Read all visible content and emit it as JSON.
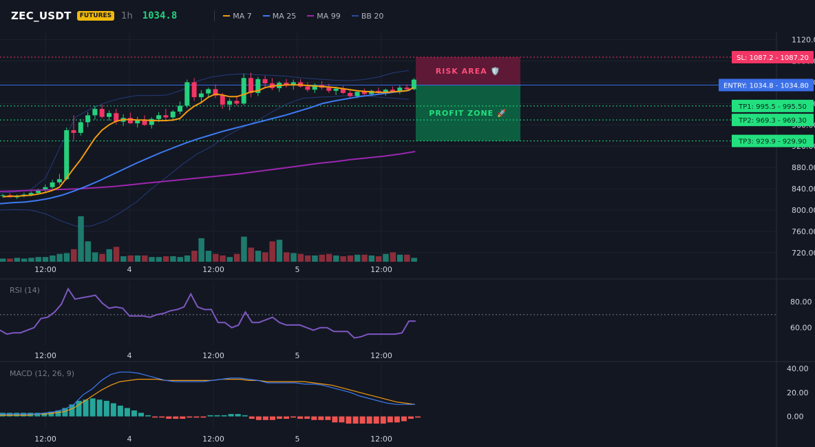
{
  "header": {
    "symbol": "ZEC_USDT",
    "badge": "FUTURES",
    "timeframe": "1h",
    "price": "1034.8",
    "legend": [
      {
        "label": "MA 7",
        "color": "#f39c12"
      },
      {
        "label": "MA 25",
        "color": "#3d7bf2"
      },
      {
        "label": "MA 99",
        "color": "#9c27b0"
      },
      {
        "label": "BB 20",
        "color": "#2a4b9b"
      }
    ]
  },
  "chart_data": {
    "type": "candlestick",
    "price_axis": {
      "ticks": [
        "1120.00",
        "1080.00",
        "1040.00",
        "1000.00",
        "960.00",
        "920.00",
        "880.00",
        "840.00",
        "800.00",
        "760.00",
        "720.00"
      ],
      "ylim": [
        703,
        1135
      ]
    },
    "time_axis": {
      "ticks": [
        "12:00",
        "4",
        "12:00",
        "5",
        "12:00"
      ]
    },
    "candles": [
      [
        827,
        830,
        824,
        828
      ],
      [
        828,
        832,
        825,
        824
      ],
      [
        824,
        829,
        821,
        827
      ],
      [
        827,
        833,
        824,
        829
      ],
      [
        829,
        835,
        826,
        832
      ],
      [
        832,
        840,
        829,
        837
      ],
      [
        837,
        848,
        834,
        843
      ],
      [
        843,
        857,
        840,
        852
      ],
      [
        852,
        868,
        848,
        858
      ],
      [
        858,
        955,
        856,
        950
      ],
      [
        950,
        978,
        931,
        945
      ],
      [
        945,
        971,
        940,
        965
      ],
      [
        965,
        984,
        956,
        978
      ],
      [
        978,
        996,
        970,
        990
      ],
      [
        990,
        998,
        972,
        975
      ],
      [
        975,
        987,
        968,
        982
      ],
      [
        982,
        990,
        961,
        966
      ],
      [
        966,
        980,
        958,
        973
      ],
      [
        973,
        983,
        962,
        963
      ],
      [
        963,
        975,
        955,
        970
      ],
      [
        970,
        978,
        958,
        960
      ],
      [
        960,
        974,
        953,
        971
      ],
      [
        971,
        984,
        965,
        978
      ],
      [
        978,
        990,
        970,
        974
      ],
      [
        974,
        988,
        967,
        985
      ],
      [
        985,
        1004,
        980,
        996
      ],
      [
        996,
        1045,
        992,
        1040
      ],
      [
        1040,
        1048,
        1005,
        1012
      ],
      [
        1012,
        1025,
        1000,
        1019
      ],
      [
        1019,
        1030,
        1011,
        1027
      ],
      [
        1027,
        1036,
        1010,
        1015
      ],
      [
        1015,
        1020,
        990,
        998
      ],
      [
        998,
        1010,
        987,
        1005
      ],
      [
        1005,
        1015,
        996,
        1000
      ],
      [
        1000,
        1056,
        997,
        1048
      ],
      [
        1048,
        1058,
        1012,
        1020
      ],
      [
        1020,
        1050,
        1014,
        1046
      ],
      [
        1046,
        1052,
        1030,
        1038
      ],
      [
        1038,
        1048,
        1025,
        1029
      ],
      [
        1029,
        1042,
        1022,
        1039
      ],
      [
        1039,
        1046,
        1030,
        1034
      ],
      [
        1034,
        1045,
        1026,
        1040
      ],
      [
        1040,
        1046,
        1030,
        1032
      ],
      [
        1032,
        1040,
        1022,
        1026
      ],
      [
        1026,
        1038,
        1020,
        1035
      ],
      [
        1035,
        1042,
        1026,
        1030
      ],
      [
        1030,
        1037,
        1020,
        1024
      ],
      [
        1024,
        1032,
        1016,
        1028
      ],
      [
        1028,
        1033,
        1018,
        1020
      ],
      [
        1020,
        1026,
        1010,
        1014
      ],
      [
        1014,
        1024,
        1010,
        1022
      ],
      [
        1022,
        1028,
        1015,
        1018
      ],
      [
        1018,
        1026,
        1014,
        1024
      ],
      [
        1024,
        1030,
        1018,
        1020
      ],
      [
        1020,
        1028,
        1015,
        1026
      ],
      [
        1026,
        1032,
        1020,
        1022
      ],
      [
        1022,
        1034,
        1018,
        1030
      ],
      [
        1030,
        1036,
        1024,
        1027
      ],
      [
        1027,
        1048,
        1025,
        1045
      ]
    ],
    "ma7": [
      825,
      826,
      826,
      827,
      828,
      830,
      833,
      837,
      843,
      860,
      878,
      895,
      915,
      935,
      950,
      960,
      967,
      970,
      970,
      969,
      969,
      968,
      968,
      968,
      969,
      972,
      985,
      995,
      1002,
      1012,
      1018,
      1016,
      1013,
      1013,
      1017,
      1022,
      1024,
      1030,
      1033,
      1034,
      1035,
      1035,
      1035,
      1034,
      1033,
      1032,
      1031,
      1030,
      1028,
      1026,
      1024,
      1023,
      1022,
      1021,
      1021,
      1022,
      1023,
      1024,
      1030
    ],
    "ma25": [
      812,
      814,
      815,
      818,
      822,
      828,
      836,
      845,
      855,
      866,
      877,
      888,
      898,
      908,
      917,
      926,
      934,
      941,
      948,
      954,
      960,
      966,
      972,
      978,
      985,
      992,
      1000,
      1005,
      1009,
      1013,
      1016,
      1019,
      1022,
      1025
    ],
    "ma25_x": [
      0,
      18,
      36,
      54,
      72,
      90,
      108,
      126,
      144,
      162,
      180,
      198,
      216,
      234,
      252,
      270,
      288,
      306,
      324,
      342,
      360,
      378,
      396,
      414,
      432,
      450,
      468,
      486,
      504,
      522,
      540,
      558,
      576,
      596
    ],
    "ma99": [
      835,
      836,
      837,
      838,
      839,
      840,
      842,
      844,
      847,
      850,
      853,
      856,
      859,
      862,
      865,
      868,
      872,
      876,
      880,
      884,
      888,
      891,
      895,
      898,
      901,
      905,
      910
    ],
    "bb_upper": [
      832,
      834,
      838,
      860,
      920,
      975,
      990,
      1002,
      1010,
      1015,
      1015,
      1016,
      1025,
      1042,
      1050,
      1054,
      1056,
      1054,
      1053,
      1051,
      1048,
      1046,
      1044,
      1043,
      1045,
      1050,
      1058,
      1062
    ],
    "bb_lower": [
      800,
      801,
      800,
      793,
      780,
      770,
      770,
      780,
      796,
      815,
      840,
      862,
      885,
      905,
      920,
      940,
      955,
      968,
      985,
      1000,
      1010,
      1012,
      1013,
      1015,
      1015,
      1012,
      1010,
      1008
    ],
    "volume": [
      4,
      4,
      5,
      4,
      5,
      6,
      6,
      8,
      10,
      11,
      16,
      58,
      26,
      12,
      10,
      16,
      19,
      7,
      8,
      8,
      8,
      6,
      6,
      7,
      7,
      6,
      8,
      14,
      30,
      14,
      10,
      8,
      6,
      10,
      32,
      18,
      14,
      12,
      26,
      28,
      12,
      11,
      10,
      8,
      8,
      9,
      10,
      8,
      7,
      8,
      9,
      9,
      8,
      7,
      10,
      12,
      9,
      9,
      5
    ],
    "levels": {
      "sl": {
        "value": 1087.2,
        "label": "SL: 1087.2 - 1087.20",
        "color": "#f23665"
      },
      "entry": {
        "value": 1034.8,
        "label": "ENTRY: 1034.8 - 1034.80",
        "color": "#3b6fe8"
      },
      "tp1": {
        "value": 995.5,
        "label": "TP1: 995.5 - 995.50",
        "color": "#23e07f"
      },
      "tp2": {
        "value": 969.3,
        "label": "TP2: 969.3 - 969.30",
        "color": "#23e07f"
      },
      "tp3": {
        "value": 929.9,
        "label": "TP3: 929.9 - 929.90",
        "color": "#23e07f"
      }
    },
    "zones": {
      "risk": "RISK AREA 🛡️",
      "profit": "PROFIT ZONE 🚀"
    },
    "rsi": {
      "title": "RSI (14)",
      "ticks": [
        "80.00",
        "60.00"
      ],
      "ylim": [
        46,
        96
      ],
      "overbought": 70,
      "values": [
        58,
        55,
        56,
        56,
        58,
        60,
        67,
        68,
        72,
        78,
        90,
        82,
        83,
        84,
        85,
        79,
        75,
        76,
        75,
        69,
        69,
        69,
        68,
        70,
        71,
        73,
        74,
        76,
        86,
        76,
        74,
        74,
        64,
        64,
        60,
        62,
        72,
        64,
        64,
        66,
        68,
        64,
        62,
        62,
        62,
        60,
        58,
        60,
        60,
        57,
        57,
        57,
        52,
        53,
        55,
        55,
        55,
        55,
        55,
        56,
        65,
        65
      ]
    },
    "macd": {
      "title": "MACD (12, 26, 9)",
      "ticks": [
        "40.00",
        "20.00",
        "0.00"
      ],
      "ylim": [
        -10,
        44
      ],
      "macd": [
        2,
        2,
        2,
        2,
        2,
        3,
        4,
        6,
        10,
        18,
        23,
        30,
        35,
        37,
        37,
        36,
        34,
        32,
        30,
        29,
        29,
        29,
        29,
        30,
        31,
        32,
        32,
        31,
        30,
        28,
        28,
        28,
        28,
        27,
        27,
        26,
        24,
        22,
        20,
        17,
        15,
        13,
        11,
        10,
        10,
        10
      ],
      "signal": [
        1,
        1,
        1,
        1,
        2,
        2,
        3,
        4,
        7,
        12,
        17,
        22,
        26,
        29,
        30,
        31,
        31,
        31,
        30,
        30,
        30,
        30,
        30,
        30,
        31,
        31,
        31,
        30,
        30,
        29,
        29,
        29,
        29,
        29,
        28,
        27,
        26,
        24,
        22,
        20,
        18,
        16,
        14,
        12,
        11,
        10
      ],
      "hist": [
        3,
        3,
        3,
        3,
        3,
        3,
        3,
        4,
        5,
        7,
        10,
        13,
        14,
        15,
        14,
        13,
        11,
        9,
        7,
        5,
        3,
        1,
        -1,
        -1,
        -2,
        -2,
        -2,
        -1,
        -1,
        -1,
        1,
        1,
        1,
        2,
        2,
        1,
        -2,
        -3,
        -3,
        -3,
        -2,
        -2,
        -1,
        -2,
        -2,
        -3,
        -3,
        -3,
        -5,
        -5,
        -6,
        -6,
        -6,
        -6,
        -6,
        -6,
        -5,
        -5,
        -4,
        -2,
        -1
      ]
    }
  }
}
